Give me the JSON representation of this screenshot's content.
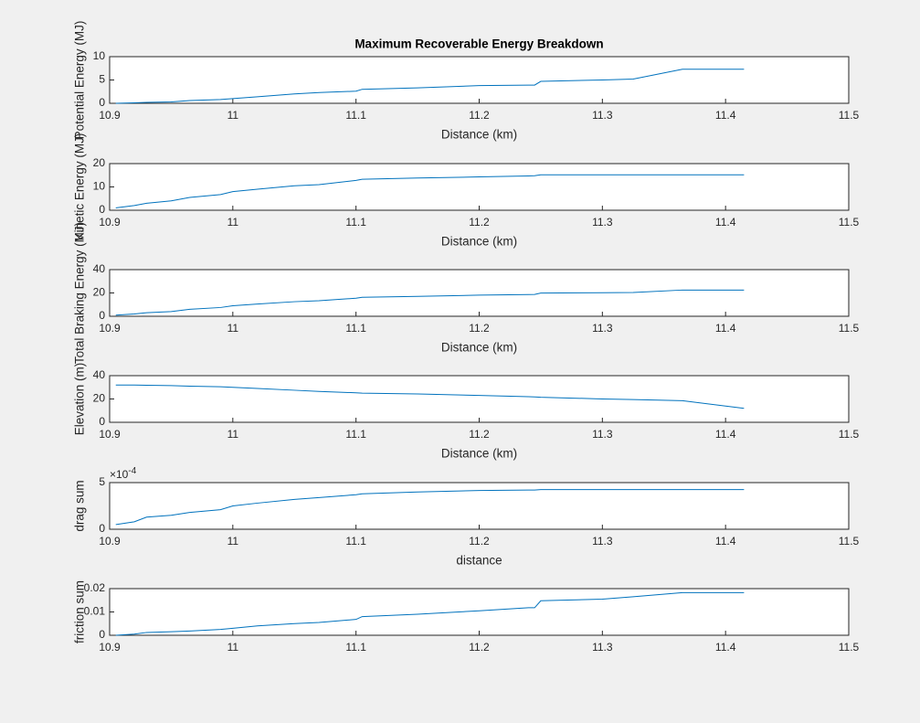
{
  "chart_data": [
    {
      "type": "line",
      "title": "Maximum Recoverable Energy Breakdown",
      "x_label": "Distance (km)",
      "y_label": "Potential Energy (MJ)",
      "x": [
        10.905,
        10.92,
        10.93,
        10.95,
        10.965,
        10.99,
        11.0,
        11.02,
        11.05,
        11.07,
        11.1,
        11.105,
        11.15,
        11.2,
        11.24,
        11.245,
        11.25,
        11.3,
        11.325,
        11.365,
        11.415
      ],
      "series": [
        {
          "color": "#0072bd",
          "values": [
            0,
            0.1,
            0.2,
            0.3,
            0.6,
            0.8,
            1.0,
            1.4,
            2.0,
            2.3,
            2.6,
            3.0,
            3.3,
            3.8,
            3.9,
            3.9,
            4.7,
            5.0,
            5.2,
            7.3,
            7.3
          ]
        }
      ],
      "xlim": [
        10.9,
        11.5
      ],
      "xticks": [
        10.9,
        11,
        11.1,
        11.2,
        11.3,
        11.4,
        11.5
      ],
      "ylim": [
        0,
        10
      ],
      "yticks": [
        0,
        5,
        10
      ]
    },
    {
      "type": "line",
      "x_label": "Distance (km)",
      "y_label": "Kinetic Energy (MJ)",
      "x": [
        10.905,
        10.92,
        10.93,
        10.95,
        10.965,
        10.99,
        11.0,
        11.02,
        11.05,
        11.07,
        11.1,
        11.105,
        11.15,
        11.2,
        11.24,
        11.245,
        11.25,
        11.3,
        11.325,
        11.365,
        11.415
      ],
      "series": [
        {
          "color": "#0072bd",
          "values": [
            1,
            2,
            3,
            4,
            5.5,
            6.7,
            8,
            9,
            10.5,
            11,
            12.8,
            13.3,
            13.8,
            14.3,
            14.7,
            14.8,
            15.2,
            15.2,
            15.2,
            15.2,
            15.2
          ]
        }
      ],
      "xlim": [
        10.9,
        11.5
      ],
      "xticks": [
        10.9,
        11,
        11.1,
        11.2,
        11.3,
        11.4,
        11.5
      ],
      "ylim": [
        0,
        20
      ],
      "yticks": [
        0,
        10,
        20
      ]
    },
    {
      "type": "line",
      "x_label": "Distance (km)",
      "y_label": "Total Braking Energy (MJ)",
      "x": [
        10.905,
        10.92,
        10.93,
        10.95,
        10.965,
        10.99,
        11.0,
        11.02,
        11.05,
        11.07,
        11.1,
        11.105,
        11.15,
        11.2,
        11.24,
        11.245,
        11.25,
        11.3,
        11.325,
        11.365,
        11.415
      ],
      "series": [
        {
          "color": "#0072bd",
          "values": [
            1,
            2,
            3,
            4,
            6,
            7.5,
            9,
            10.5,
            12.5,
            13.3,
            15.5,
            16.3,
            17.1,
            18.1,
            18.6,
            18.7,
            19.9,
            20.2,
            20.4,
            22.5,
            22.5
          ]
        }
      ],
      "xlim": [
        10.9,
        11.5
      ],
      "xticks": [
        10.9,
        11,
        11.1,
        11.2,
        11.3,
        11.4,
        11.5
      ],
      "ylim": [
        0,
        40
      ],
      "yticks": [
        0,
        20,
        40
      ]
    },
    {
      "type": "line",
      "x_label": "Distance (km)",
      "y_label": "Elevation (m)",
      "x": [
        10.905,
        10.92,
        10.93,
        10.95,
        10.965,
        10.99,
        11.0,
        11.02,
        11.05,
        11.07,
        11.1,
        11.105,
        11.15,
        11.2,
        11.24,
        11.245,
        11.25,
        11.3,
        11.325,
        11.365,
        11.415
      ],
      "series": [
        {
          "color": "#0072bd",
          "values": [
            32,
            32,
            31.8,
            31.5,
            31,
            30.5,
            30,
            29,
            27.5,
            26.5,
            25.3,
            25,
            24.3,
            23,
            22,
            21.8,
            21.5,
            20,
            19.5,
            18.5,
            12
          ]
        }
      ],
      "xlim": [
        10.9,
        11.5
      ],
      "xticks": [
        10.9,
        11,
        11.1,
        11.2,
        11.3,
        11.4,
        11.5
      ],
      "ylim": [
        0,
        40
      ],
      "yticks": [
        0,
        20,
        40
      ]
    },
    {
      "type": "line",
      "x_label": "distance",
      "y_label": "drag sum",
      "y_exponent": {
        "base": "×10",
        "power": "-4"
      },
      "x": [
        10.905,
        10.92,
        10.93,
        10.95,
        10.965,
        10.99,
        11.0,
        11.02,
        11.05,
        11.07,
        11.1,
        11.105,
        11.15,
        11.2,
        11.24,
        11.245,
        11.25,
        11.3,
        11.325,
        11.365,
        11.415
      ],
      "series": [
        {
          "color": "#0072bd",
          "values": [
            0.5,
            0.8,
            1.3,
            1.5,
            1.8,
            2.1,
            2.5,
            2.8,
            3.2,
            3.4,
            3.7,
            3.8,
            4.0,
            4.15,
            4.2,
            4.2,
            4.25,
            4.25,
            4.25,
            4.25,
            4.25
          ]
        }
      ],
      "xlim": [
        10.9,
        11.5
      ],
      "xticks": [
        10.9,
        11,
        11.1,
        11.2,
        11.3,
        11.4,
        11.5
      ],
      "ylim": [
        0,
        5
      ],
      "yticks": [
        0,
        5
      ]
    },
    {
      "type": "line",
      "y_label": "friction sum",
      "x": [
        10.905,
        10.92,
        10.93,
        10.95,
        10.965,
        10.99,
        11.0,
        11.02,
        11.05,
        11.07,
        11.1,
        11.105,
        11.15,
        11.2,
        11.24,
        11.245,
        11.25,
        11.3,
        11.325,
        11.365,
        11.415
      ],
      "series": [
        {
          "color": "#0072bd",
          "values": [
            0,
            0.0005,
            0.0012,
            0.0015,
            0.0018,
            0.0025,
            0.003,
            0.004,
            0.005,
            0.0055,
            0.0068,
            0.008,
            0.009,
            0.0105,
            0.0118,
            0.0118,
            0.0148,
            0.0155,
            0.0165,
            0.0183,
            0.0183
          ]
        }
      ],
      "xlim": [
        10.9,
        11.5
      ],
      "xticks": [
        10.9,
        11,
        11.1,
        11.2,
        11.3,
        11.4,
        11.5
      ],
      "ylim": [
        0,
        0.02
      ],
      "yticks": [
        0,
        0.01,
        0.02
      ]
    }
  ]
}
